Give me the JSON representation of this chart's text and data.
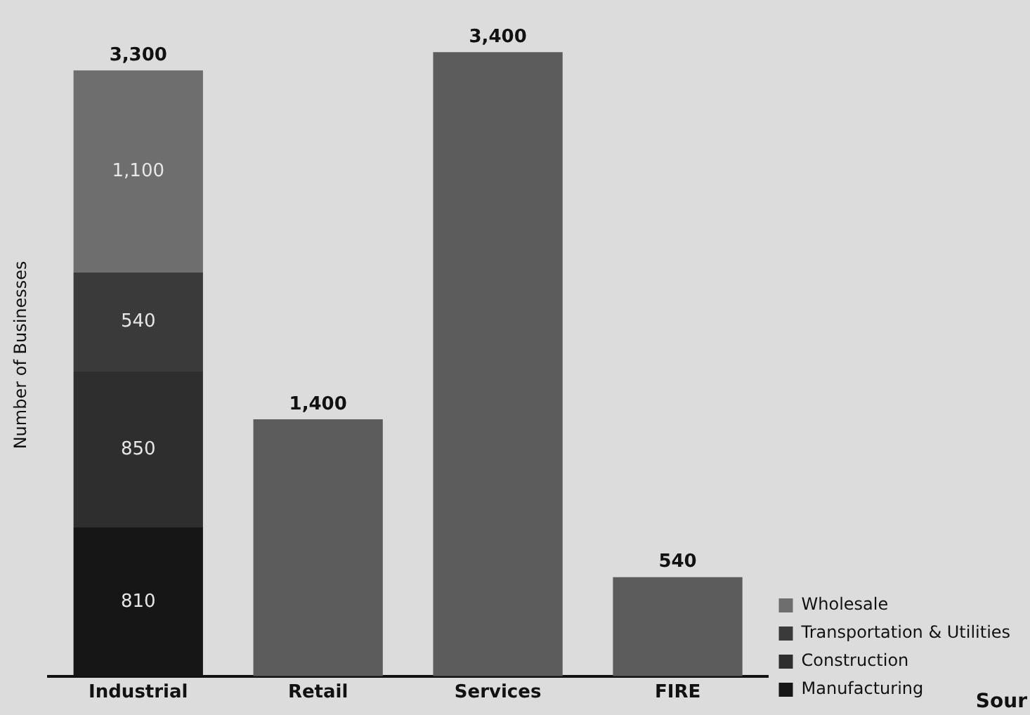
{
  "chart_data": {
    "type": "bar",
    "stacked": true,
    "ylabel": "Number of Businesses",
    "categories": [
      "Industrial",
      "Retail",
      "Services",
      "FIRE"
    ],
    "series": [
      {
        "name": "Manufacturing",
        "color": "#161616",
        "values": [
          810,
          null,
          null,
          null
        ],
        "value_labels": [
          "810",
          null,
          null,
          null
        ]
      },
      {
        "name": "Construction",
        "color": "#2e2e2e",
        "values": [
          850,
          null,
          null,
          null
        ],
        "value_labels": [
          "850",
          null,
          null,
          null
        ]
      },
      {
        "name": "Transportation & Utilities",
        "color": "#3a3a3a",
        "values": [
          540,
          null,
          null,
          null
        ],
        "value_labels": [
          "540",
          null,
          null,
          null
        ]
      },
      {
        "name": "Wholesale",
        "color": "#6e6e6e",
        "values": [
          1100,
          null,
          null,
          null
        ],
        "value_labels": [
          "1,100",
          null,
          null,
          null
        ]
      },
      {
        "color": "#5c5c5c",
        "values": [
          null,
          1400,
          3400,
          540
        ]
      }
    ],
    "totals": [
      "3,300",
      "1,400",
      "3,400",
      "540"
    ],
    "tick_labels": "x",
    "legend": "bottom right",
    "annotations": [
      "Sour"
    ]
  }
}
